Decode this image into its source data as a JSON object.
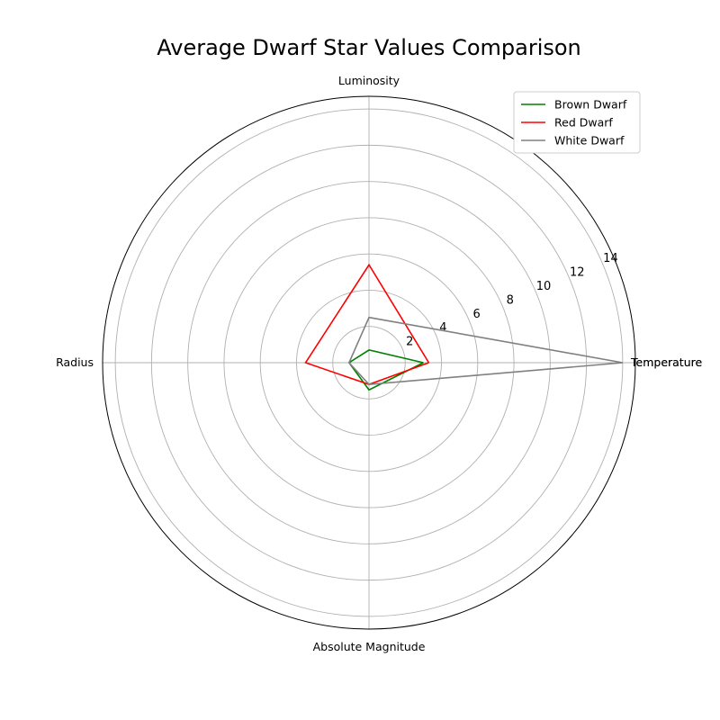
{
  "chart_data": {
    "type": "radar",
    "title": "Average Dwarf Star Values Comparison",
    "axes": [
      "Temperature",
      "Luminosity",
      "Radius",
      "Absolute Magnitude",
      "Temperature"
    ],
    "rlim": [
      0,
      14.7
    ],
    "r_ticks": [
      2,
      4,
      6,
      8,
      10,
      12,
      14
    ],
    "grid": true,
    "legend_position": "top-right",
    "series": [
      {
        "name": "Brown Dwarf",
        "color": "#008000",
        "values": [
          3.0,
          0.7,
          1.1,
          1.5,
          3.0
        ]
      },
      {
        "name": "Red Dwarf",
        "color": "#ff0000",
        "values": [
          3.3,
          5.4,
          3.5,
          1.2,
          3.3
        ]
      },
      {
        "name": "White Dwarf",
        "color": "#808080",
        "values": [
          14.0,
          2.5,
          1.1,
          1.2,
          14.0
        ]
      }
    ]
  }
}
